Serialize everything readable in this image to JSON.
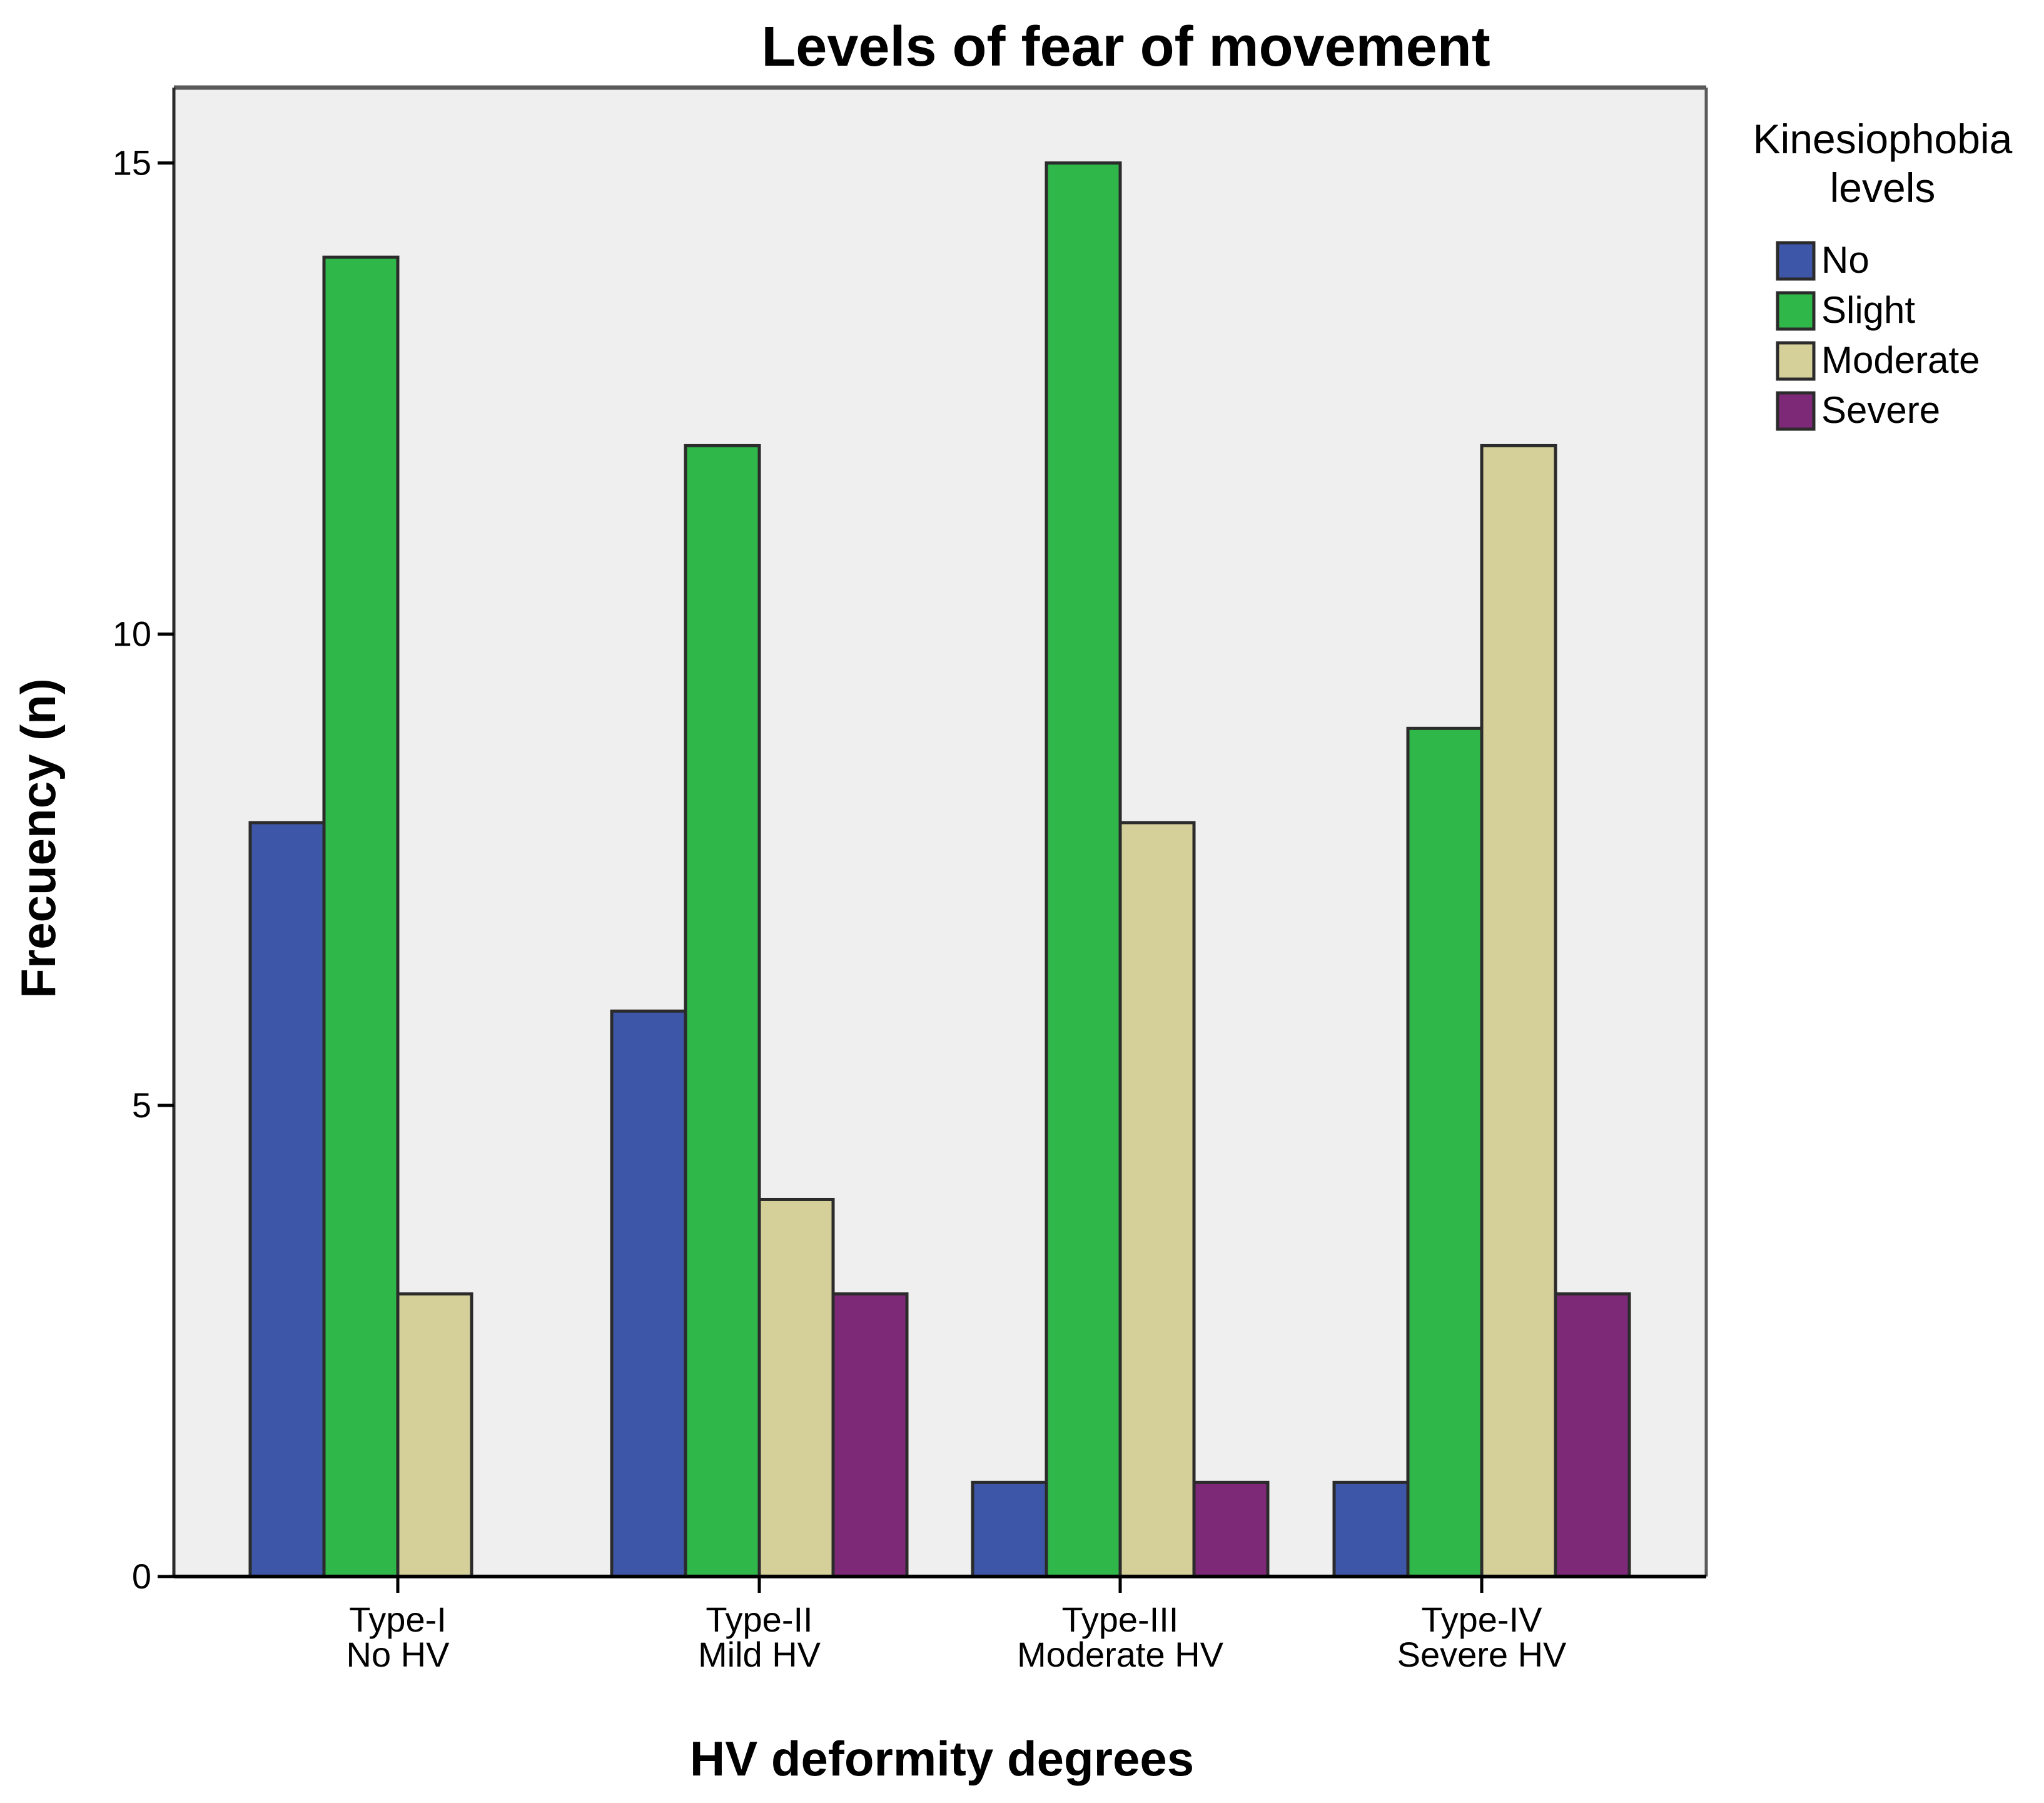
{
  "chart_data": {
    "type": "bar",
    "title": "Levels of fear of movement",
    "xlabel": "HV deformity degrees",
    "ylabel": "Frecuency (n)",
    "ylim": [
      0,
      15.8
    ],
    "yticks": [
      0,
      5,
      10,
      15
    ],
    "grid": false,
    "categories": [
      [
        "Type-I",
        "No HV"
      ],
      [
        "Type-II",
        "Mild HV"
      ],
      [
        "Type-III",
        "Moderate HV"
      ],
      [
        "Type-IV",
        "Severe HV"
      ]
    ],
    "legend": {
      "title": [
        "Kinesiophobia",
        "levels"
      ],
      "position": "right"
    },
    "series": [
      {
        "name": "No",
        "color": "#3e56a8",
        "values": [
          8,
          6,
          1,
          1
        ]
      },
      {
        "name": "Slight",
        "color": "#2fb74a",
        "values": [
          14,
          12,
          15,
          9
        ]
      },
      {
        "name": "Moderate",
        "color": "#d5d09a",
        "values": [
          3,
          4,
          8,
          12
        ]
      },
      {
        "name": "Severe",
        "color": "#7e2878",
        "values": [
          0,
          3,
          1,
          3
        ]
      }
    ],
    "plot_background": "#efefef"
  }
}
